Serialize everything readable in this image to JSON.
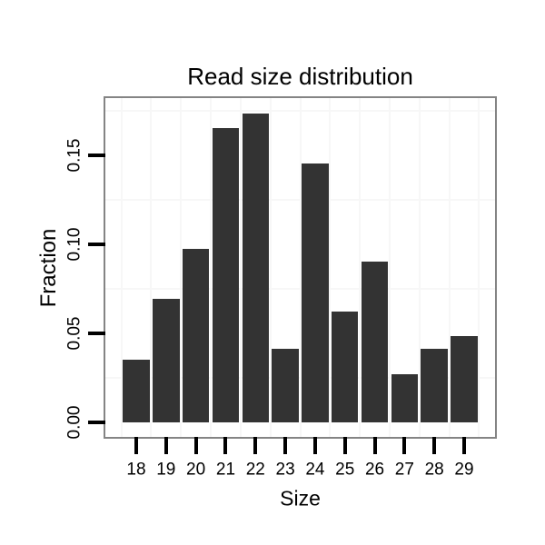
{
  "chart_data": {
    "type": "bar",
    "title": "Read size distribution",
    "xlabel": "Size",
    "ylabel": "Fraction",
    "categories": [
      "18",
      "19",
      "20",
      "21",
      "22",
      "23",
      "24",
      "25",
      "26",
      "27",
      "28",
      "29"
    ],
    "values": [
      0.035,
      0.069,
      0.097,
      0.165,
      0.173,
      0.041,
      0.145,
      0.062,
      0.09,
      0.027,
      0.041,
      0.048
    ],
    "yticks": {
      "values": [
        0.0,
        0.05,
        0.1,
        0.15
      ],
      "labels": [
        "0.00",
        "0.05",
        "0.10",
        "0.15"
      ]
    },
    "grid_minor_y": [
      0.025,
      0.075,
      0.125,
      0.175
    ],
    "ylim": [
      -0.0084,
      0.1819
    ],
    "grid": "minor-only",
    "legend": "none",
    "bar_width_fraction": 0.9,
    "colors": {
      "bar": "#333333",
      "panel_border": "#848484",
      "grid": "#f7f7f7",
      "tick": "#000000",
      "text": "#000000",
      "background": "#ffffff"
    }
  }
}
